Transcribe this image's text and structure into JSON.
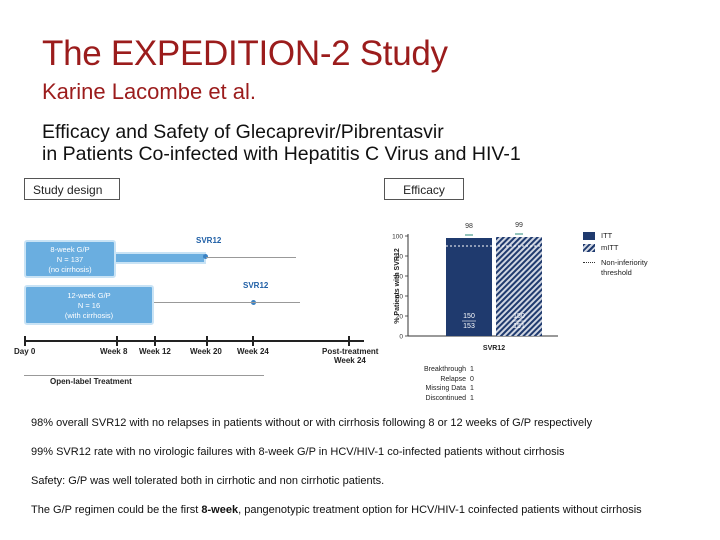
{
  "slide": {
    "title": "The EXPEDITION-2 Study",
    "author": "Karine Lacombe et al.",
    "subtitle_line1": "Efficacy and Safety of Glecaprevir/Pibrentasvir",
    "subtitle_line2": "in Patients Co-infected with Hepatitis C Virus and HIV-1"
  },
  "study_design": {
    "label": "Study design",
    "arm1": {
      "line1": "8-week G/P",
      "line2": "N = 137",
      "line3": "(no cirrhosis)",
      "svr_label": "SVR12"
    },
    "arm2": {
      "line1": "12-week G/P",
      "line2": "N = 16",
      "line3": "(with cirrhosis)",
      "svr_label": "SVR12"
    },
    "timeline": [
      "Day 0",
      "Week 8",
      "Week 12",
      "Week 20",
      "Week 24",
      "Post-treatment",
      "Week 24"
    ],
    "footer": "Open-label Treatment",
    "colors": {
      "arm": "#6aaee0",
      "timeline": "#222222"
    }
  },
  "efficacy": {
    "label": "Efficacy",
    "legend": [
      "ITT",
      "mITT",
      "Non-inferiority",
      "threshold"
    ],
    "table_labels": [
      "Breakthrough",
      "Relapse",
      "Missing Data",
      "Discontinued"
    ],
    "table_values": [
      "1",
      "0",
      "1",
      "1"
    ],
    "colors": {
      "itt": "#1f3a6e",
      "mitt": "#1f3a6e"
    }
  },
  "chart_data": {
    "type": "bar",
    "ylabel": "% Patients with SVR12",
    "xlabel": "SVR12",
    "ylim": [
      0,
      100
    ],
    "yticks": [
      "0",
      "20",
      "40",
      "60",
      "80",
      "100"
    ],
    "series": [
      {
        "name": "ITT",
        "values": [
          98
        ],
        "value_label": "98",
        "count_top": "150",
        "count_bottom": "153"
      },
      {
        "name": "mITT",
        "values": [
          99
        ],
        "value_label": "99",
        "count_top": "150",
        "count_bottom": "151"
      }
    ],
    "threshold": 90
  },
  "bullets": {
    "b1": "98% overall SVR12 with no relapses in patients without or with cirrhosis following 8 or 12 weeks of G/P respectively",
    "b2": "99% SVR12 rate with no virologic failures with 8-week G/P in HCV/HIV-1 co-infected patients without cirrhosis",
    "b3": "Safety:   G/P was well tolerated both in cirrhotic and non cirrhotic patients.",
    "b4_pre": "The G/P regimen could be the first ",
    "b4_bold": "8-week",
    "b4_post": ", pangenotypic treatment option for HCV/HIV-1 coinfected patients without cirrhosis"
  }
}
